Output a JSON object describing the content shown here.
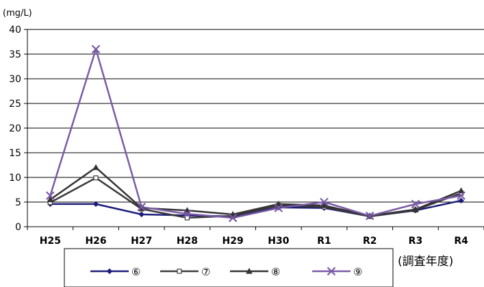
{
  "chart_data": {
    "type": "line",
    "title": "",
    "unit_label": "(mg/L)",
    "xlabel": "(調査年度)",
    "ylabel": "",
    "ylim": [
      0,
      40
    ],
    "yticks": [
      0,
      5,
      10,
      15,
      20,
      25,
      30,
      35,
      40
    ],
    "grid": true,
    "legend_position": "bottom",
    "categories": [
      "H25",
      "H26",
      "H27",
      "H28",
      "H29",
      "H30",
      "R1",
      "R2",
      "R3",
      "R4"
    ],
    "series": [
      {
        "name": "⑥",
        "color": "#1c1c7a",
        "marker": "diamond",
        "values": [
          4.6,
          4.6,
          2.5,
          2.3,
          2.1,
          3.9,
          3.8,
          2.1,
          3.3,
          5.3
        ]
      },
      {
        "name": "⑦",
        "color": "#3a3a3a",
        "marker": "square-open",
        "values": [
          4.9,
          9.9,
          3.6,
          1.8,
          2.2,
          4.3,
          4.0,
          2.1,
          3.4,
          6.8
        ]
      },
      {
        "name": "⑧",
        "color": "#333333",
        "marker": "triangle",
        "values": [
          5.5,
          12.0,
          3.8,
          3.3,
          2.5,
          4.6,
          4.3,
          2.2,
          3.5,
          7.3
        ]
      },
      {
        "name": "⑨",
        "color": "#7a5aa6",
        "marker": "x",
        "values": [
          6.3,
          36.0,
          4.0,
          2.6,
          1.8,
          3.8,
          5.0,
          2.2,
          4.6,
          6.3
        ]
      }
    ]
  }
}
